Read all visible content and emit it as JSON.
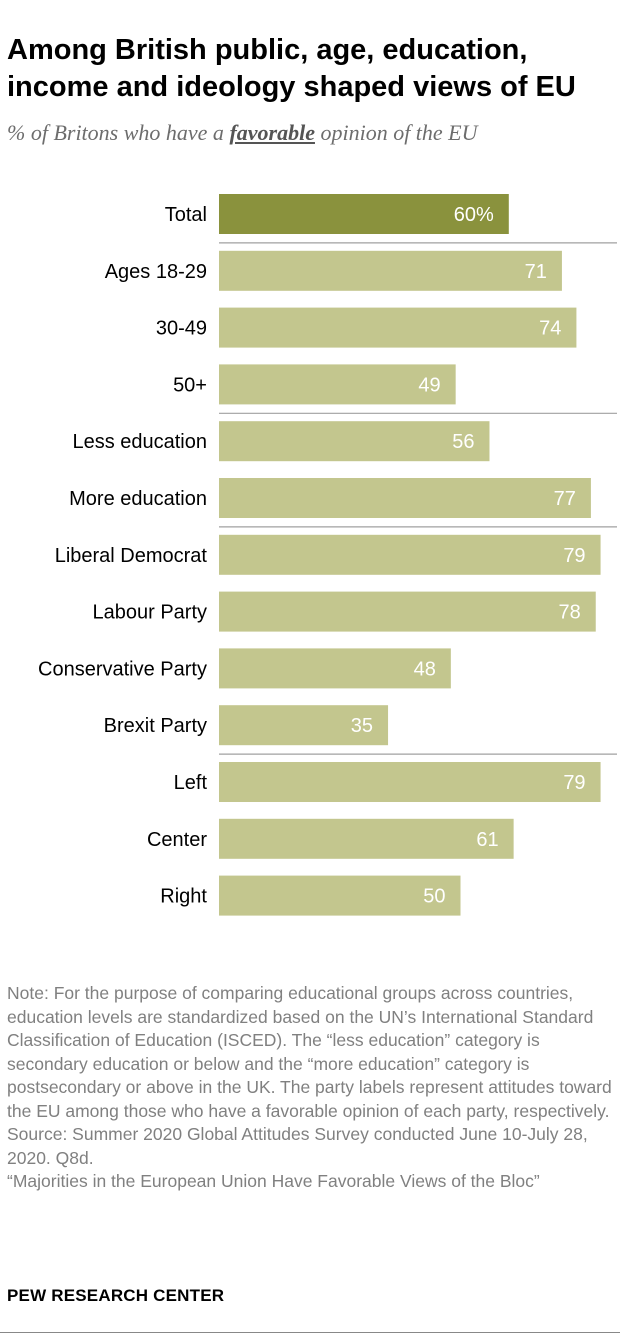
{
  "title": "Among British public, age, education, income and ideology shaped views of EU",
  "subtitle": {
    "before": "% of Britons who have a ",
    "emphasis": "favorable",
    "after": " opinion of the EU"
  },
  "chart_data": {
    "type": "bar",
    "orientation": "horizontal",
    "categories": [
      "Total",
      "Ages 18-29",
      "30-49",
      "50+",
      "Less education",
      "More education",
      "Liberal Democrat",
      "Labour Party",
      "Conservative Party",
      "Brexit Party",
      "Left",
      "Center",
      "Right"
    ],
    "values": [
      60,
      71,
      74,
      49,
      56,
      77,
      79,
      78,
      48,
      35,
      79,
      61,
      50
    ],
    "value_labels": [
      "60%",
      "71",
      "74",
      "49",
      "56",
      "77",
      "79",
      "78",
      "48",
      "35",
      "79",
      "61",
      "50"
    ],
    "groups": [
      [
        0
      ],
      [
        1,
        2,
        3
      ],
      [
        4,
        5
      ],
      [
        6,
        7,
        8,
        9
      ],
      [
        10,
        11,
        12
      ]
    ],
    "xlim": [
      0,
      80
    ],
    "colors": {
      "total": "#8a923d",
      "bar": "#c3c68e",
      "value_text": "#ffffff",
      "divider": "#a0a0a0"
    },
    "grid": false,
    "legend": "none"
  },
  "notes": [
    "Note: For the purpose of comparing educational groups across countries, education levels are standardized based on the UN’s International Standard Classification of Education (ISCED). The “less education” category is secondary education or below and the “more education” category is postsecondary or above in the UK. The party labels represent attitudes toward the EU among those who have a favorable opinion of each party, respectively.",
    "Source: Summer 2020 Global Attitudes Survey conducted June 10-July 28, 2020. Q8d.",
    "“Majorities in the European Union Have Favorable Views of the Bloc”"
  ],
  "org": "PEW RESEARCH CENTER"
}
